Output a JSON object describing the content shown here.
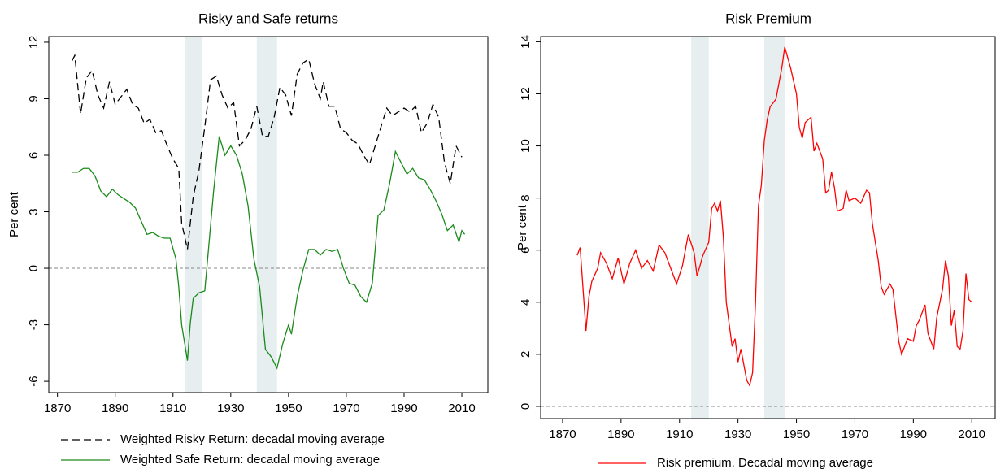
{
  "chart_data": [
    {
      "type": "line",
      "title": "Risky and Safe returns",
      "ylabel": "Per cent",
      "xlim": [
        1867,
        2019
      ],
      "ylim": [
        -6.6,
        12.3
      ],
      "xticks": [
        1870,
        1890,
        1910,
        1930,
        1950,
        1970,
        1990,
        2010
      ],
      "yticks": [
        -6,
        -3,
        0,
        3,
        6,
        9,
        12
      ],
      "hline": 0,
      "shaded": [
        [
          1914,
          1920
        ],
        [
          1939,
          1946
        ]
      ],
      "shade_color": "#e6eef0",
      "series": [
        {
          "name": "Weighted Risky Return: decadal moving average",
          "color": "#000000",
          "dash": "dashed",
          "x": [
            1875,
            1876,
            1878,
            1880,
            1882,
            1884,
            1886,
            1888,
            1890,
            1892,
            1894,
            1896,
            1898,
            1900,
            1902,
            1904,
            1906,
            1908,
            1910,
            1912,
            1913,
            1915,
            1917,
            1919,
            1921,
            1923,
            1925,
            1927,
            1929,
            1931,
            1933,
            1935,
            1937,
            1939,
            1941,
            1943,
            1945,
            1947,
            1949,
            1951,
            1953,
            1955,
            1957,
            1959,
            1961,
            1962,
            1964,
            1966,
            1968,
            1970,
            1972,
            1974,
            1976,
            1978,
            1980,
            1982,
            1984,
            1986,
            1988,
            1990,
            1992,
            1994,
            1996,
            1998,
            2000,
            2002,
            2004,
            2006,
            2008,
            2010
          ],
          "values": [
            11.0,
            11.3,
            8.2,
            10.1,
            10.5,
            9.2,
            8.5,
            9.9,
            8.7,
            9.1,
            9.5,
            8.7,
            8.5,
            7.7,
            7.9,
            7.2,
            7.3,
            6.5,
            5.8,
            5.3,
            2.4,
            1.0,
            3.8,
            5.2,
            7.5,
            10.0,
            10.2,
            9.2,
            8.5,
            8.8,
            6.5,
            6.8,
            7.4,
            8.6,
            7.0,
            7.0,
            8.0,
            9.6,
            9.2,
            8.1,
            10.3,
            10.9,
            11.1,
            9.8,
            9.0,
            9.9,
            8.6,
            8.6,
            7.4,
            7.2,
            6.8,
            6.6,
            6.0,
            5.5,
            6.5,
            7.5,
            8.5,
            8.1,
            8.3,
            8.5,
            8.3,
            8.6,
            7.2,
            7.7,
            8.7,
            8.0,
            5.6,
            4.5,
            6.5,
            5.9
          ]
        },
        {
          "name": "Weighted Safe Return: decadal moving average",
          "color": "#1a8a1a",
          "dash": "solid",
          "x": [
            1875,
            1877,
            1879,
            1881,
            1883,
            1885,
            1887,
            1889,
            1891,
            1893,
            1895,
            1897,
            1899,
            1901,
            1903,
            1905,
            1907,
            1909,
            1911,
            1912,
            1913,
            1915,
            1916,
            1917,
            1919,
            1921,
            1922,
            1924,
            1926,
            1928,
            1930,
            1932,
            1934,
            1936,
            1938,
            1940,
            1942,
            1944,
            1946,
            1948,
            1950,
            1951,
            1953,
            1955,
            1957,
            1959,
            1961,
            1963,
            1965,
            1967,
            1969,
            1971,
            1973,
            1975,
            1977,
            1979,
            1981,
            1983,
            1985,
            1987,
            1989,
            1991,
            1993,
            1995,
            1997,
            1999,
            2001,
            2003,
            2005,
            2007,
            2009,
            2010,
            2011
          ],
          "values": [
            5.1,
            5.1,
            5.3,
            5.3,
            4.9,
            4.1,
            3.8,
            4.2,
            3.9,
            3.7,
            3.5,
            3.2,
            2.5,
            1.8,
            1.9,
            1.7,
            1.6,
            1.6,
            0.5,
            -1.0,
            -3.0,
            -4.9,
            -2.9,
            -1.6,
            -1.3,
            -1.2,
            0.5,
            4.0,
            7.0,
            6.0,
            6.5,
            6.0,
            5.0,
            3.3,
            0.5,
            -1.0,
            -4.3,
            -4.7,
            -5.3,
            -4.0,
            -3.0,
            -3.5,
            -1.5,
            -0.1,
            1.0,
            1.0,
            0.7,
            1.0,
            0.9,
            1.0,
            0.0,
            -0.8,
            -0.9,
            -1.5,
            -1.8,
            -0.8,
            2.8,
            3.1,
            4.5,
            6.2,
            5.6,
            5.0,
            5.3,
            4.8,
            4.7,
            4.2,
            3.6,
            2.9,
            2.0,
            2.3,
            1.4,
            2.0,
            1.8
          ]
        }
      ]
    },
    {
      "type": "line",
      "title": "Risk Premium",
      "ylabel": "Per cent",
      "xlim": [
        1862.5,
        2018
      ],
      "ylim": [
        -0.47,
        14.2
      ],
      "xticks": [
        1870,
        1890,
        1910,
        1930,
        1950,
        1970,
        1990,
        2010
      ],
      "yticks": [
        0,
        2,
        4,
        6,
        8,
        10,
        12,
        14
      ],
      "hline": 0,
      "shaded": [
        [
          1914,
          1920
        ],
        [
          1939,
          1946
        ]
      ],
      "shade_color": "#e6eef0",
      "series": [
        {
          "name": "Risk premium. Decadal moving average",
          "color": "#ff0000",
          "dash": "solid",
          "x": [
            1875,
            1876,
            1878,
            1879,
            1880,
            1882,
            1883,
            1885,
            1887,
            1889,
            1891,
            1893,
            1895,
            1897,
            1899,
            1901,
            1903,
            1905,
            1907,
            1909,
            1911,
            1913,
            1915,
            1916,
            1918,
            1920,
            1921,
            1922,
            1923,
            1924,
            1925,
            1926,
            1928,
            1929,
            1930,
            1931,
            1933,
            1934,
            1935,
            1936,
            1937,
            1938,
            1939,
            1940,
            1941,
            1943,
            1945,
            1946,
            1948,
            1950,
            1951,
            1952,
            1953,
            1955,
            1956,
            1957,
            1959,
            1960,
            1961,
            1962,
            1963,
            1964,
            1966,
            1967,
            1968,
            1970,
            1972,
            1974,
            1975,
            1976,
            1978,
            1979,
            1980,
            1982,
            1983,
            1985,
            1986,
            1988,
            1990,
            1991,
            1992,
            1994,
            1995,
            1997,
            1998,
            2000,
            2001,
            2002,
            2003,
            2004,
            2005,
            2006,
            2007,
            2008,
            2009,
            2010
          ],
          "values": [
            5.8,
            6.1,
            2.9,
            4.2,
            4.8,
            5.3,
            5.9,
            5.5,
            4.9,
            5.7,
            4.7,
            5.5,
            6.0,
            5.3,
            5.6,
            5.2,
            6.2,
            5.9,
            5.3,
            4.7,
            5.4,
            6.6,
            5.9,
            5.0,
            5.8,
            6.3,
            7.6,
            7.8,
            7.5,
            7.9,
            6.5,
            4.0,
            2.3,
            2.6,
            1.7,
            2.2,
            1.0,
            0.8,
            1.3,
            4.0,
            7.7,
            8.5,
            10.2,
            11.0,
            11.5,
            11.8,
            13.0,
            13.8,
            13.0,
            12.0,
            10.7,
            10.3,
            10.9,
            11.1,
            9.8,
            10.1,
            9.5,
            8.2,
            8.3,
            9.0,
            8.4,
            7.5,
            7.6,
            8.3,
            7.9,
            8.0,
            7.8,
            8.3,
            8.2,
            7.0,
            5.6,
            4.6,
            4.3,
            4.7,
            4.5,
            2.5,
            2.0,
            2.6,
            2.5,
            3.1,
            3.3,
            3.9,
            2.8,
            2.2,
            3.4,
            4.5,
            5.6,
            5.0,
            3.1,
            3.7,
            2.3,
            2.2,
            2.9,
            5.1,
            4.1,
            4.0
          ]
        }
      ]
    }
  ]
}
